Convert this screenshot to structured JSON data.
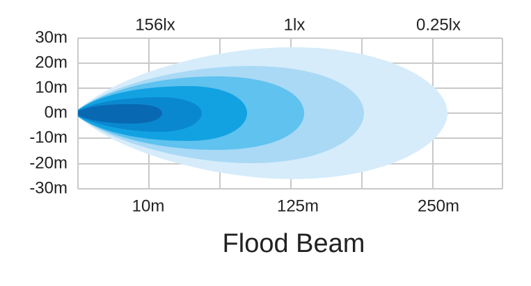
{
  "lux_labels": [
    "156lx",
    "1lx",
    "0.25lx"
  ],
  "y_labels": [
    "30m",
    "20m",
    "10m",
    "0m",
    "-10m",
    "-20m",
    "-30m"
  ],
  "x_labels": [
    "10m",
    "125m",
    "250m"
  ],
  "title": "Flood Beam"
}
